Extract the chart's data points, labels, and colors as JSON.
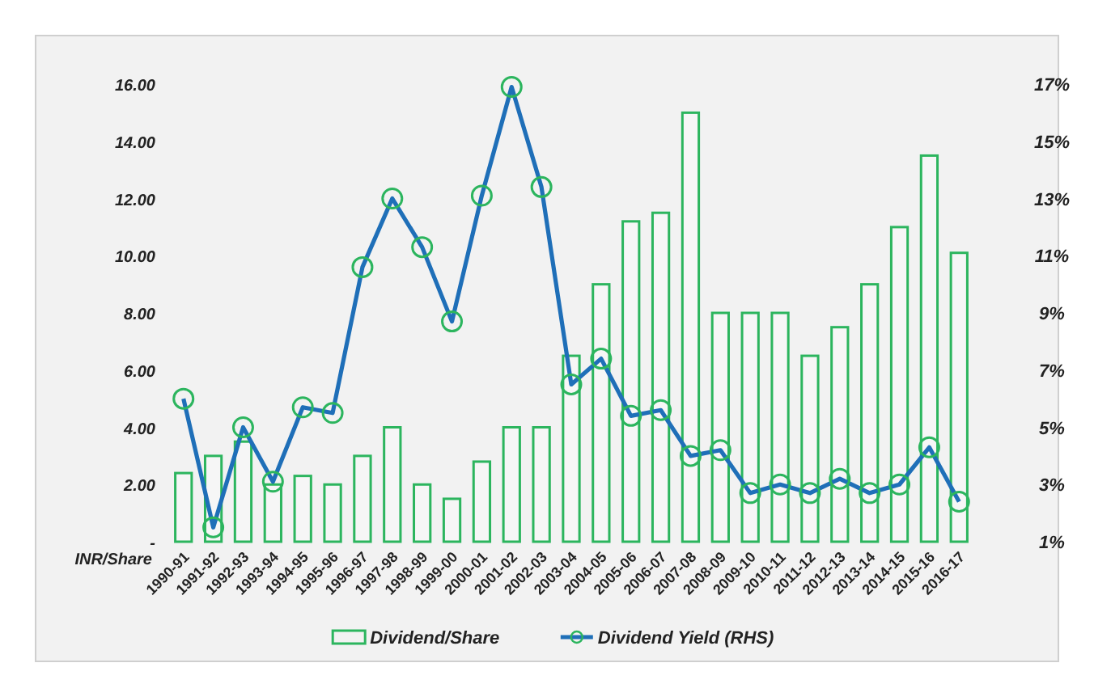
{
  "chart_data": {
    "type": "bar",
    "ylabel": "INR/Share",
    "categories": [
      "1990-91",
      "1991-92",
      "1992-93",
      "1993-94",
      "1994-95",
      "1995-96",
      "1996-97",
      "1997-98",
      "1998-99",
      "1999-00",
      "2000-01",
      "2001-02",
      "2002-03",
      "2003-04",
      "2004-05",
      "2005-06",
      "2006-07",
      "2007-08",
      "2008-09",
      "2009-10",
      "2010-11",
      "2011-12",
      "2012-13",
      "2013-14",
      "2014-15",
      "2015-16",
      "2016-17"
    ],
    "series": [
      {
        "name": "Dividend/Share",
        "color": "#2cb55e",
        "values": [
          2.4,
          3.0,
          3.5,
          2.0,
          2.3,
          2.0,
          3.0,
          4.0,
          2.0,
          1.5,
          2.8,
          4.0,
          4.0,
          6.5,
          9.0,
          11.2,
          11.5,
          15.0,
          8.0,
          8.0,
          8.0,
          6.5,
          7.5,
          9.0,
          11.0,
          13.5,
          10.1
        ]
      },
      {
        "name": "Dividend Yield (RHS)",
        "type": "line",
        "axis": "y2",
        "color": "#1f6fb8",
        "marker": "circle",
        "values": [
          6.0,
          1.5,
          5.0,
          3.1,
          5.7,
          5.5,
          10.6,
          13.0,
          11.3,
          8.7,
          13.1,
          16.9,
          13.4,
          6.5,
          7.4,
          5.4,
          5.6,
          4.0,
          4.2,
          2.7,
          3.0,
          2.7,
          3.2,
          2.7,
          3.0,
          4.3,
          2.4
        ]
      }
    ],
    "ylim": [
      0,
      16
    ],
    "yticks": [
      {
        "value": 0,
        "label": "-"
      },
      {
        "value": 2,
        "label": "2.00"
      },
      {
        "value": 4,
        "label": "4.00"
      },
      {
        "value": 6,
        "label": "6.00"
      },
      {
        "value": 8,
        "label": "8.00"
      },
      {
        "value": 10,
        "label": "10.00"
      },
      {
        "value": 12,
        "label": "12.00"
      },
      {
        "value": 14,
        "label": "14.00"
      },
      {
        "value": 16,
        "label": "16.00"
      }
    ],
    "y2lim": [
      1,
      17
    ],
    "y2ticks": [
      {
        "value": 1,
        "label": "1%"
      },
      {
        "value": 3,
        "label": "3%"
      },
      {
        "value": 5,
        "label": "5%"
      },
      {
        "value": 7,
        "label": "7%"
      },
      {
        "value": 9,
        "label": "9%"
      },
      {
        "value": 11,
        "label": "11%"
      },
      {
        "value": 13,
        "label": "13%"
      },
      {
        "value": 15,
        "label": "15%"
      },
      {
        "value": 17,
        "label": "17%"
      }
    ],
    "grid": false,
    "legend": "bottom"
  }
}
